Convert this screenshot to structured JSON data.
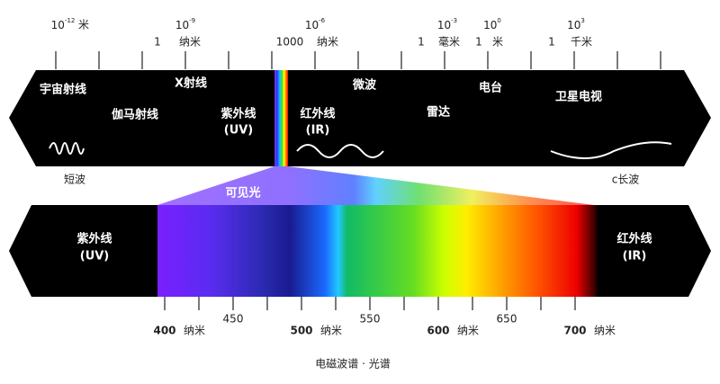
{
  "top_scale": [
    {
      "base": "10",
      "exp": "-12",
      "unit": "米"
    },
    {
      "base": "10",
      "exp": "-9",
      "value": "1",
      "unit": "纳米"
    },
    {
      "base": "10",
      "exp": "-6",
      "value": "1000",
      "unit": "纳米"
    },
    {
      "base": "10",
      "exp": "-3",
      "value": "1",
      "unit": "毫米"
    },
    {
      "base": "10",
      "exp": "0",
      "value": "1",
      "unit": "米"
    },
    {
      "base": "10",
      "exp": "3",
      "value": "1",
      "unit": "千米"
    }
  ],
  "bands": [
    "宇宙射线",
    "伽马射线",
    "X射线",
    "紫外线",
    "(UV)",
    "红外线",
    "(IR)",
    "微波",
    "雷达",
    "电台",
    "卫星电视"
  ],
  "short_wave": "短波",
  "long_wave": "c长波",
  "visible": "可见光",
  "bottom_left": [
    "紫外线",
    "(UV)"
  ],
  "bottom_right": [
    "红外线",
    "(IR)"
  ],
  "bottom_scale": [
    {
      "value": "400",
      "unit": "纳米"
    },
    {
      "value": "450"
    },
    {
      "value": "500",
      "unit": "纳米"
    },
    {
      "value": "550"
    },
    {
      "value": "600",
      "unit": "纳米"
    },
    {
      "value": "650"
    },
    {
      "value": "700",
      "unit": "纳米"
    }
  ],
  "caption": "电磁波谱 · 光谱"
}
